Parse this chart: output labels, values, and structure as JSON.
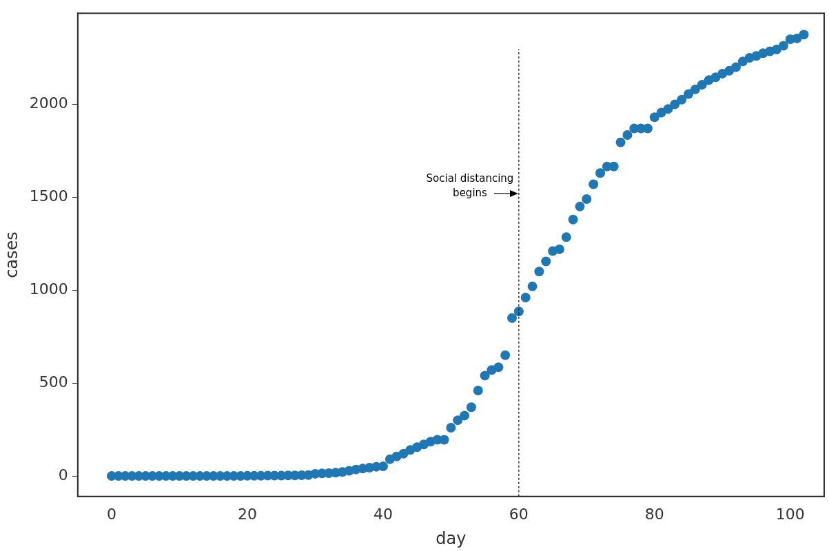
{
  "chart_data": {
    "type": "scatter",
    "xlabel": "day",
    "ylabel": "cases",
    "x": [
      0,
      1,
      2,
      3,
      4,
      5,
      6,
      7,
      8,
      9,
      10,
      11,
      12,
      13,
      14,
      15,
      16,
      17,
      18,
      19,
      20,
      21,
      22,
      23,
      24,
      25,
      26,
      27,
      28,
      29,
      30,
      31,
      32,
      33,
      34,
      35,
      36,
      37,
      38,
      39,
      40,
      41,
      42,
      43,
      44,
      45,
      46,
      47,
      48,
      49,
      50,
      51,
      52,
      53,
      54,
      55,
      56,
      57,
      58,
      59,
      60,
      61,
      62,
      63,
      64,
      65,
      66,
      67,
      68,
      69,
      70,
      71,
      72,
      73,
      74,
      75,
      76,
      77,
      78,
      79,
      80,
      81,
      82,
      83,
      84,
      85,
      86,
      87,
      88,
      89,
      90,
      91,
      92,
      93,
      94,
      95,
      96,
      97,
      98,
      99,
      100,
      101,
      102
    ],
    "series": [
      {
        "color": "#1f77b4",
        "values": [
          0,
          0,
          0,
          0,
          0,
          0,
          0,
          0,
          0,
          0,
          0,
          0,
          0,
          0,
          0,
          0,
          0,
          0,
          0,
          0,
          1,
          1,
          1,
          2,
          2,
          2,
          3,
          3,
          4,
          5,
          12,
          14,
          15,
          18,
          22,
          28,
          35,
          40,
          45,
          50,
          52,
          90,
          105,
          120,
          140,
          155,
          170,
          185,
          195,
          195,
          260,
          300,
          325,
          370,
          460,
          540,
          570,
          585,
          650,
          850,
          885,
          960,
          1020,
          1100,
          1155,
          1210,
          1220,
          1285,
          1380,
          1450,
          1490,
          1570,
          1630,
          1665,
          1665,
          1795,
          1835,
          1870,
          1870,
          1870,
          1930,
          1955,
          1975,
          2000,
          2025,
          2055,
          2080,
          2105,
          2130,
          2145,
          2165,
          2180,
          2200,
          2230,
          2250,
          2260,
          2275,
          2285,
          2295,
          2315,
          2350,
          2355,
          2375
        ]
      }
    ],
    "xlim": [
      -5,
      105
    ],
    "xticks": [
      0,
      20,
      40,
      60,
      80,
      100
    ],
    "ylim": [
      -110,
      2490
    ],
    "yticks": [
      0,
      500,
      1000,
      1500,
      2000
    ],
    "grid": false,
    "legend": false,
    "marker": "circle",
    "ref_lines": [
      {
        "axis": "x",
        "value": 60,
        "line_style": "dotted",
        "color": "#000000"
      }
    ],
    "annotations": [
      {
        "text": "Social distancing begins",
        "x": 60,
        "y": 1520
      }
    ]
  }
}
